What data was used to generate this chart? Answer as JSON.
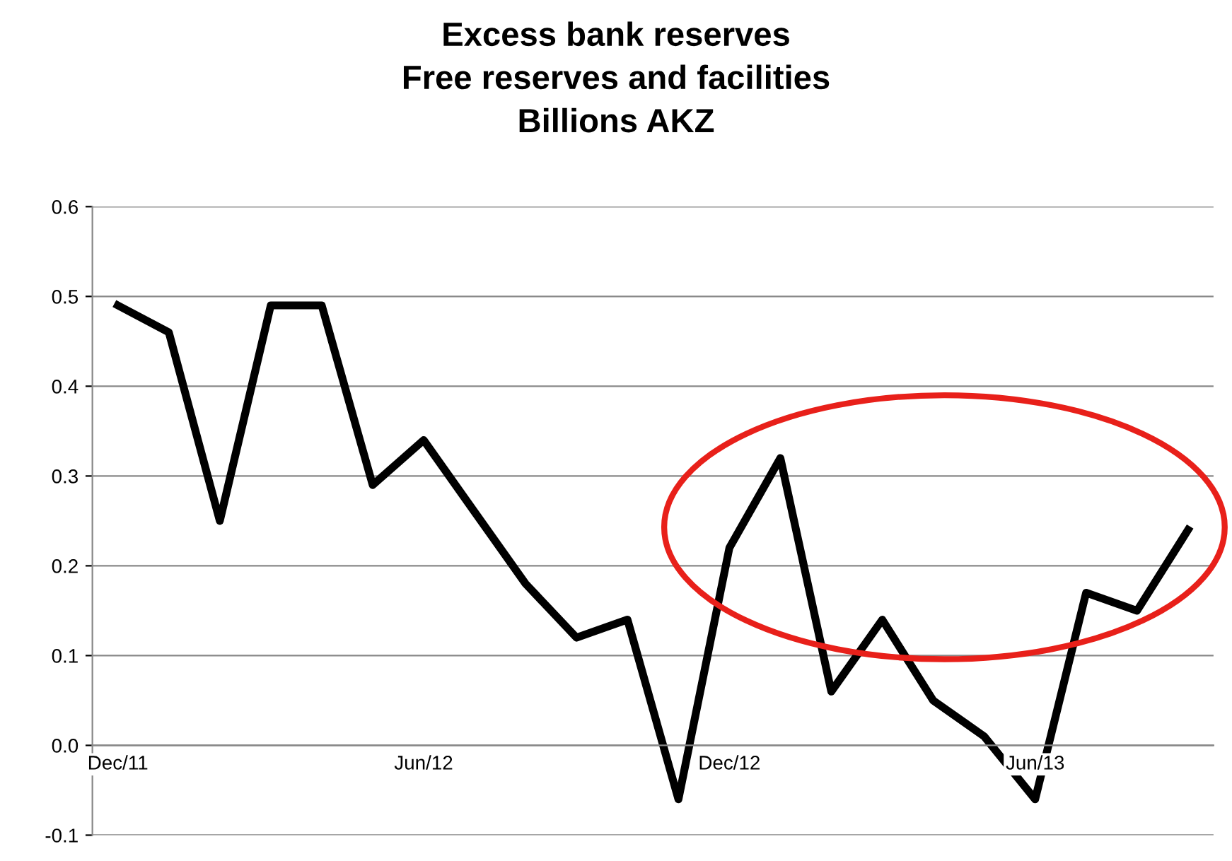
{
  "chart_data": {
    "type": "line",
    "title": "Excess bank reserves\nFree reserves and facilities\nBillions AKZ",
    "categories": [
      "Dec/11",
      null,
      null,
      null,
      null,
      null,
      "Jun/12",
      null,
      null,
      null,
      null,
      null,
      "Dec/12",
      null,
      null,
      null,
      null,
      null,
      "Jun/13",
      null,
      null,
      null
    ],
    "series": [
      {
        "color": "#000000",
        "values": [
          0.49,
          0.46,
          0.25,
          0.49,
          0.49,
          0.29,
          0.34,
          0.26,
          0.18,
          0.12,
          0.14,
          -0.06,
          0.22,
          0.32,
          0.06,
          0.14,
          0.05,
          0.01,
          -0.06,
          0.17,
          0.15,
          0.24
        ]
      }
    ],
    "ylim": [
      -0.1,
      0.6
    ],
    "yticks": [
      -0.1,
      {
        "value": 0,
        "label": "0.0"
      },
      0.1,
      0.2,
      0.3,
      0.4,
      0.5,
      0.6
    ],
    "grid": "y",
    "marker": "none",
    "line_style": "solid",
    "legend": false
  }
}
